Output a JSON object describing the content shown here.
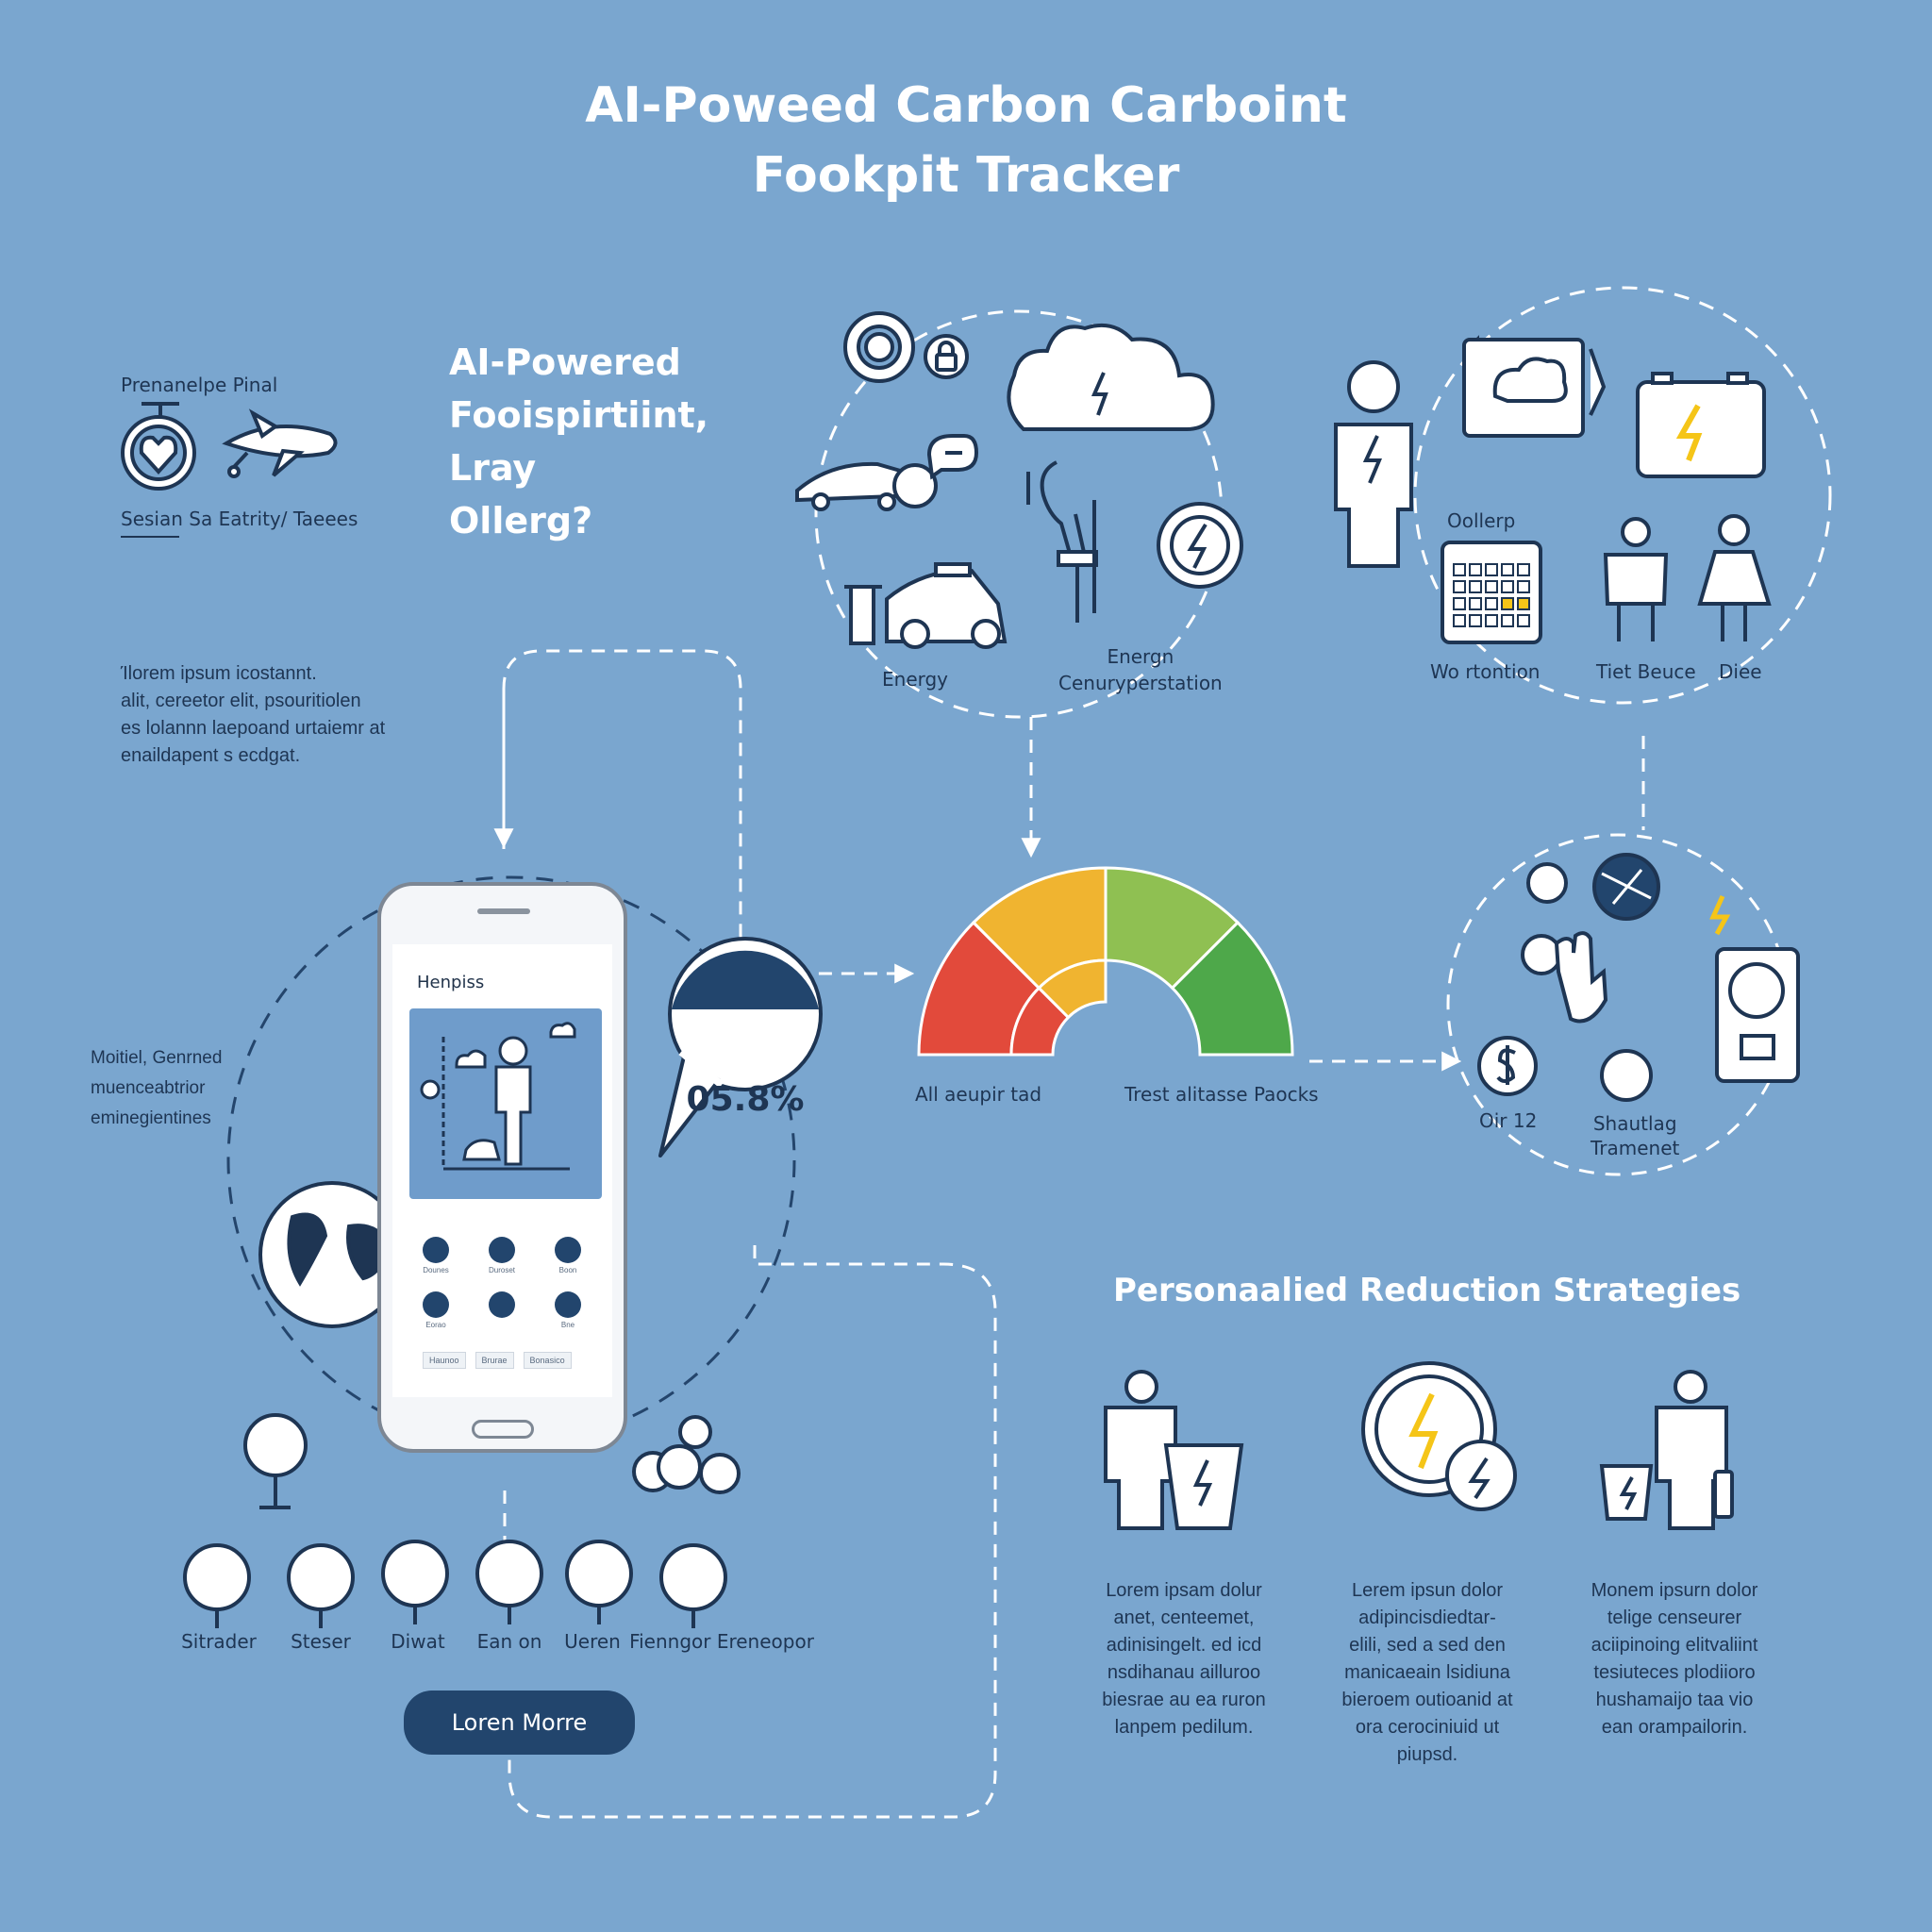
{
  "title": {
    "line1": "AI-Poweed Carbon Carboint",
    "line2": "Fookpit Tracker"
  },
  "intro": {
    "headline": [
      "AI-Powered",
      "Fooispirtiint,",
      "Lray",
      "Ollerg?"
    ],
    "top_label": "Prenanelpe Pinal",
    "sub_label": "Sesian Sa Eatrity/ Taeees",
    "paragraph": "Ίlorem ipsum icostannt.\nalit, cereetor elit, psouritiolen\nes lolannn laepoand urtaiemr at\nenaildapent s ecdgat."
  },
  "inputs": {
    "labels": [
      "Energy",
      "Energn\nCenuryperstation"
    ],
    "lifestyle_labels": [
      "Oollerp",
      "Wo rtontion",
      "Tiet Beuce",
      "Diee"
    ]
  },
  "phone": {
    "screen_title": "Henpiss",
    "grid_labels": [
      "Dounes",
      "Duroset",
      "Boon",
      "Eorao",
      "",
      "Bne"
    ],
    "chips": [
      "Haunoo",
      "Brurae",
      "Bonasico"
    ],
    "left_caption": "Moitiel, Genrned\nmuenceabtrior\neminegientines"
  },
  "callout": {
    "value": "05.8%"
  },
  "gauge": {
    "left_label": "All aeupir tad",
    "right_label": "Trest alitasse Paocks",
    "segments_outer": [
      "#e24a3b",
      "#f0b430",
      "#8fc052",
      "#4ea84a"
    ],
    "segments_inner": [
      "#e24a3b",
      "#f0b430"
    ]
  },
  "actions": {
    "label_left": "Oir 12",
    "label_mid": "Shautlag\nTramenet"
  },
  "bottom_icons": [
    "Sitrader",
    "Steser",
    "Diwat",
    "Ean on",
    "Ueren",
    "Fienngor Ereneopor"
  ],
  "cta": {
    "label": "Loren Morre"
  },
  "strategies": {
    "heading": "Personaalied Reduction Strategies",
    "items": [
      "Lorem ipsam dolur\nanet, centeemet,\nadinisingelt. ed icd\nnsdihanau ailluroo\nbiesrae au ea ruron\nlanpem pedilum.",
      "Lerem ipsun dolor\nadipincisdiedtar-\nelili, sed a sed den\nmanicaeain lsidiuna\nbieroem outioanid at\nora cerociniuid ut\npiupsd.",
      "Monem ipsurn dolor\ntelige censeurer\naciipinoing elitvaliint\ntesiuteces plodiioro\nhushamaijo taa vio\nean orampailorin."
    ]
  },
  "colors": {
    "background": "#7aa6cf",
    "ink": "#1e3553",
    "accent": "#f5c518",
    "white": "#ffffff"
  }
}
